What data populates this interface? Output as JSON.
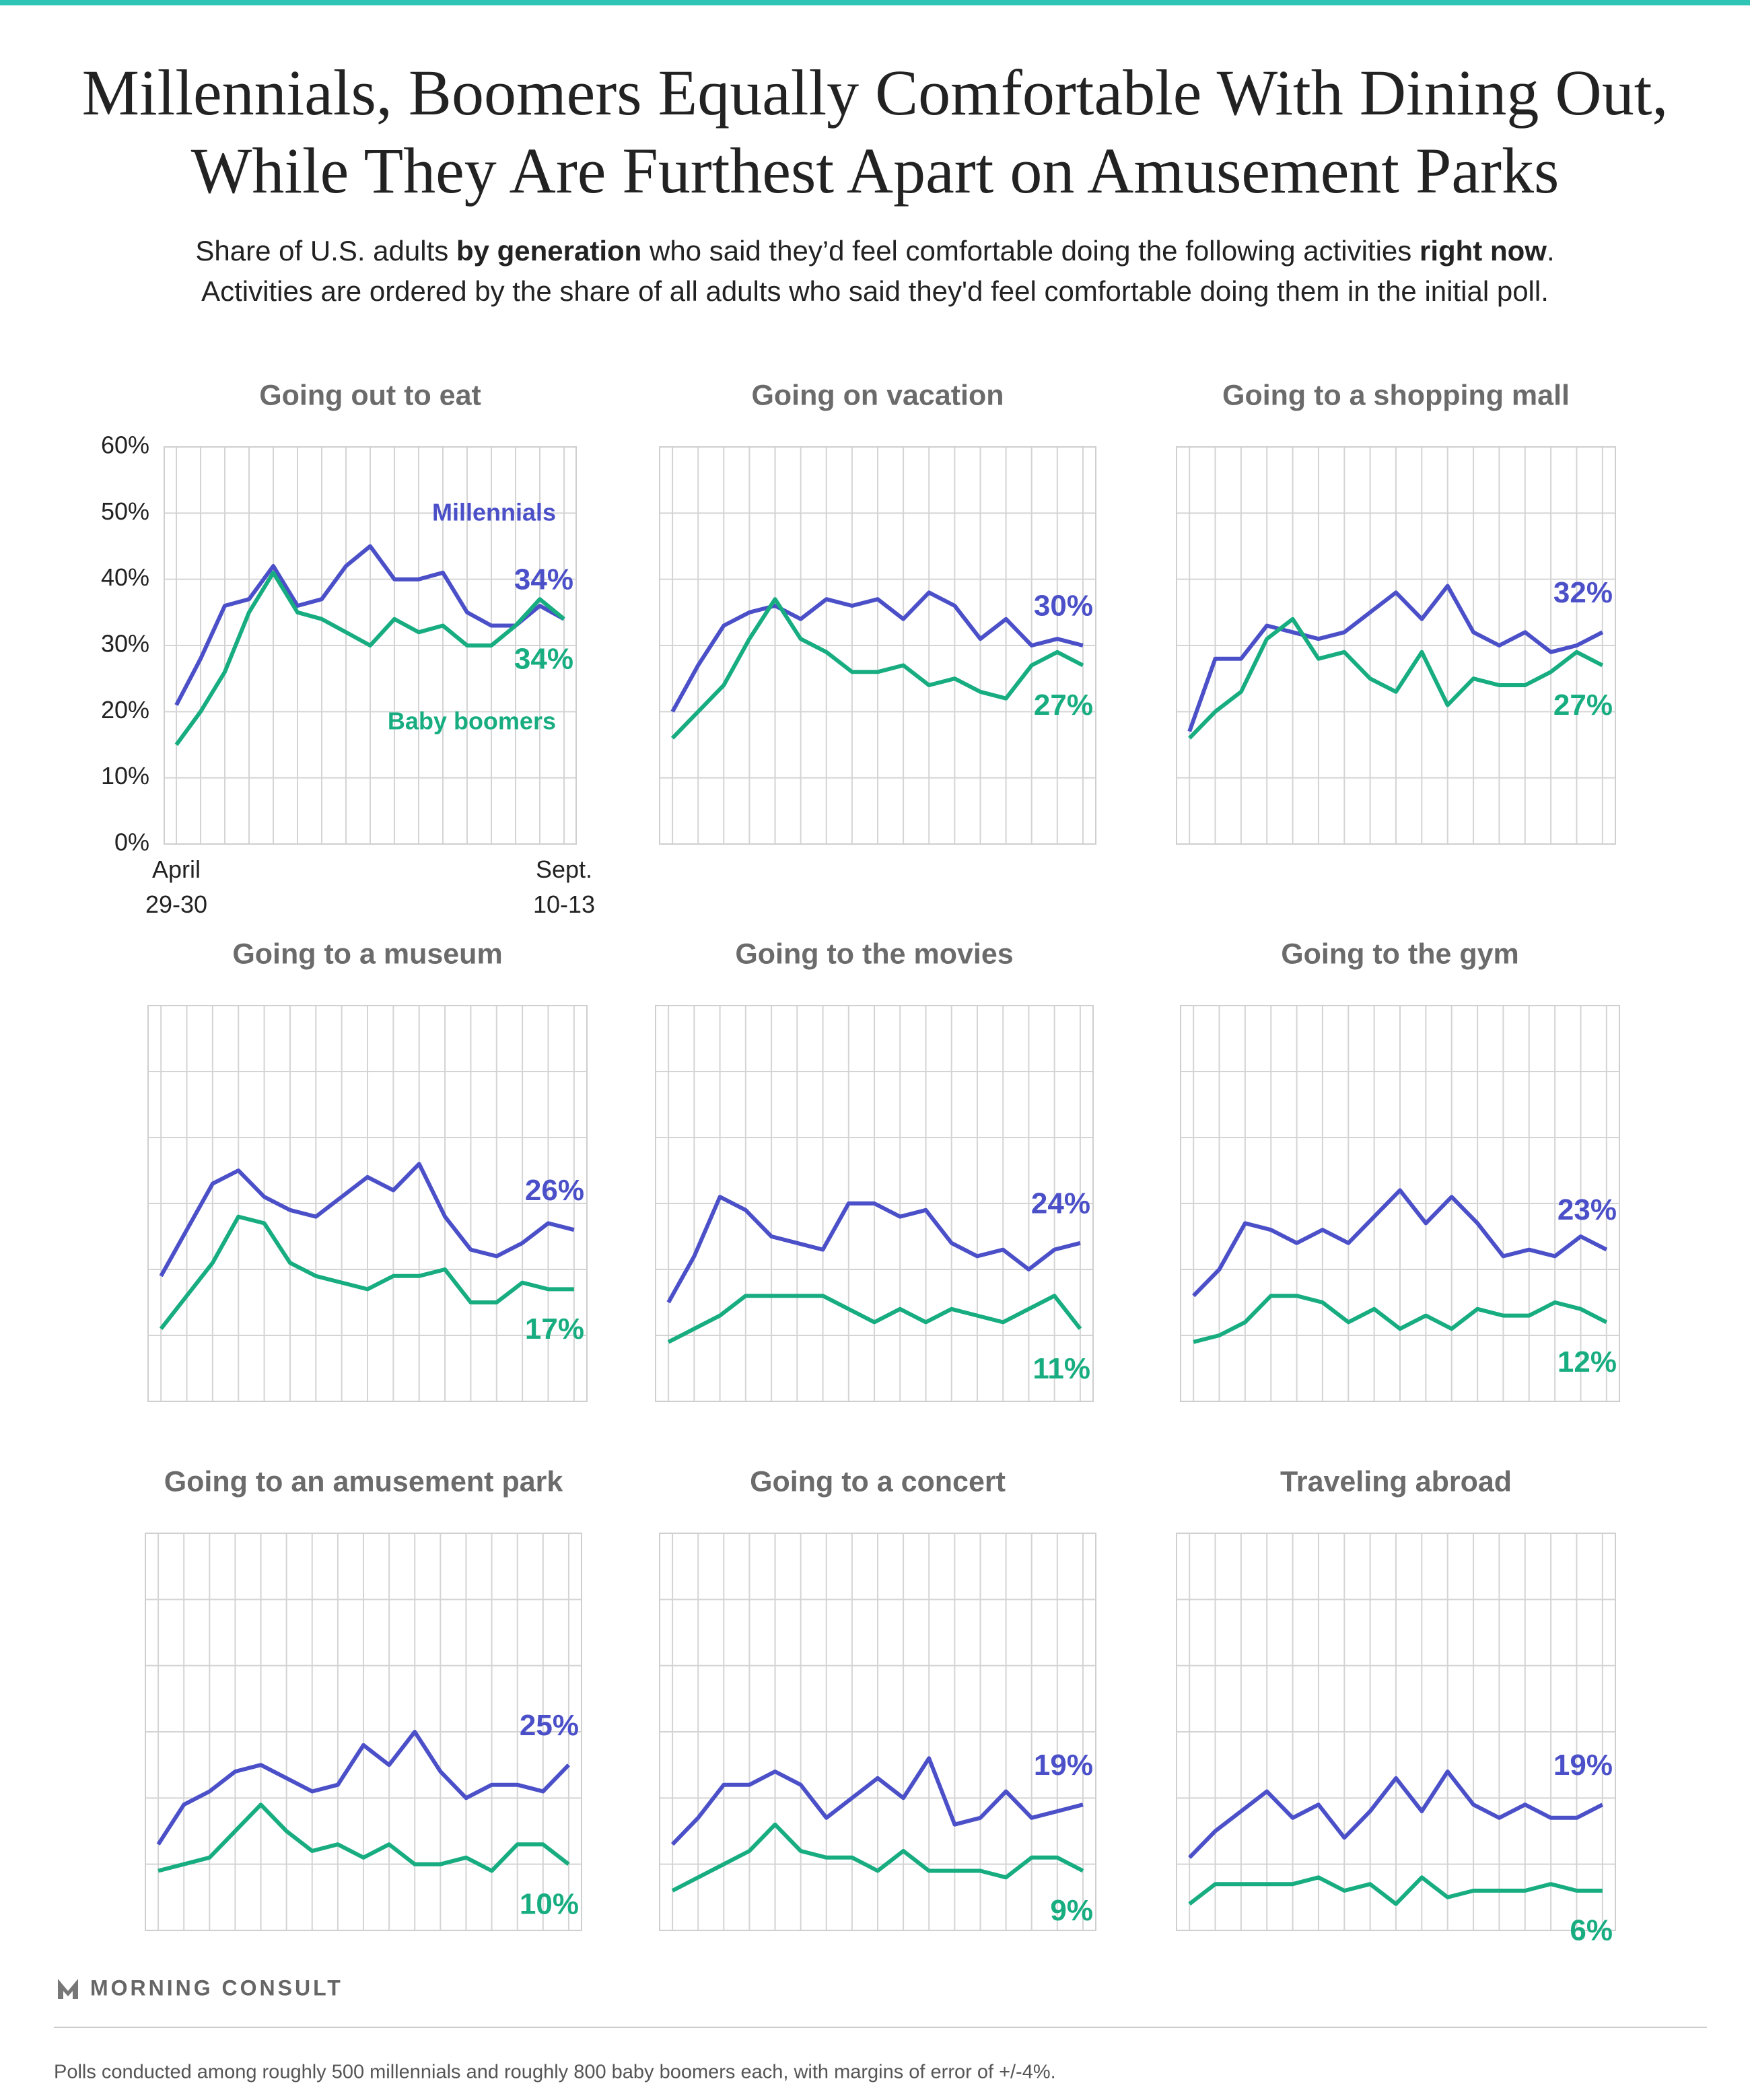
{
  "title": [
    "Millennials, Boomers Equally Comfortable With Dining Out,",
    "While They Are Furthest Apart on Amusement Parks"
  ],
  "subtitle": [
    [
      {
        "text": "Share of U.S. adults ",
        "bold": false
      },
      {
        "text": "by generation",
        "bold": true
      },
      {
        "text": " who said they’d feel comfortable doing the following activities ",
        "bold": false
      },
      {
        "text": "right now",
        "bold": true
      },
      {
        "text": ".",
        "bold": false
      }
    ],
    [
      {
        "text": "Activities are ordered by the share of all adults who said they'd feel comfortable doing them in the initial poll.",
        "bold": false
      }
    ]
  ],
  "logo": "MORNING CONSULT",
  "source": "Polls conducted among roughly 500 millennials and roughly 800 baby boomers each, with margins of error of +/-4%.",
  "chart_data": [
    {
      "type": "line",
      "title": "Going out to eat",
      "categories": [
        "April 29-30",
        null,
        null,
        null,
        null,
        null,
        null,
        null,
        null,
        null,
        null,
        null,
        null,
        null,
        null,
        null,
        "Sept. 10-13"
      ],
      "ylim": [
        0,
        60
      ],
      "yticks": [
        {
          "value": 0,
          "label": "0%"
        },
        {
          "value": 10,
          "label": "10%"
        },
        {
          "value": 20,
          "label": "20%"
        },
        {
          "value": 30,
          "label": "30%"
        },
        {
          "value": 40,
          "label": "40%"
        },
        {
          "value": 50,
          "label": "50%"
        },
        {
          "value": 60,
          "label": "60%"
        }
      ],
      "series": [
        {
          "name": "Millennials",
          "color": "#4b50c8",
          "values": [
            21,
            28,
            36,
            37,
            42,
            36,
            37,
            42,
            45,
            40,
            40,
            41,
            35,
            33,
            33,
            36,
            34
          ],
          "value_labels": [
            null,
            null,
            null,
            null,
            null,
            null,
            null,
            null,
            null,
            null,
            null,
            null,
            null,
            null,
            null,
            null,
            "34%"
          ]
        },
        {
          "name": "Baby boomers",
          "color": "#17ad80",
          "values": [
            15,
            20,
            26,
            35,
            41,
            35,
            34,
            32,
            30,
            34,
            32,
            33,
            30,
            30,
            33,
            37,
            34
          ],
          "value_labels": [
            null,
            null,
            null,
            null,
            null,
            null,
            null,
            null,
            null,
            null,
            null,
            null,
            null,
            null,
            null,
            null,
            "34%"
          ]
        }
      ]
    },
    {
      "type": "line",
      "title": "Going on vacation",
      "ylim": [
        0,
        60
      ],
      "yticks": [
        0,
        10,
        20,
        30,
        40,
        50,
        60
      ],
      "series": [
        {
          "color": "#4b50c8",
          "values": [
            20,
            27,
            33,
            35,
            36,
            34,
            37,
            36,
            37,
            34,
            38,
            36,
            31,
            34,
            30,
            31,
            30
          ],
          "value_labels": [
            null,
            null,
            null,
            null,
            null,
            null,
            null,
            null,
            null,
            null,
            null,
            null,
            null,
            null,
            null,
            null,
            "30%"
          ]
        },
        {
          "color": "#17ad80",
          "values": [
            16,
            20,
            24,
            31,
            37,
            31,
            29,
            26,
            26,
            27,
            24,
            25,
            23,
            22,
            27,
            29,
            27
          ],
          "value_labels": [
            null,
            null,
            null,
            null,
            null,
            null,
            null,
            null,
            null,
            null,
            null,
            null,
            null,
            null,
            null,
            null,
            "27%"
          ]
        }
      ]
    },
    {
      "type": "line",
      "title": "Going to a shopping mall",
      "ylim": [
        0,
        60
      ],
      "yticks": [
        0,
        10,
        20,
        30,
        40,
        50,
        60
      ],
      "series": [
        {
          "color": "#4b50c8",
          "values": [
            17,
            28,
            28,
            33,
            32,
            31,
            32,
            35,
            38,
            34,
            39,
            32,
            30,
            32,
            29,
            30,
            32
          ],
          "value_labels": [
            null,
            null,
            null,
            null,
            null,
            null,
            null,
            null,
            null,
            null,
            null,
            null,
            null,
            null,
            null,
            null,
            "32%"
          ]
        },
        {
          "color": "#17ad80",
          "values": [
            16,
            20,
            23,
            31,
            34,
            28,
            29,
            25,
            23,
            29,
            21,
            25,
            24,
            24,
            26,
            29,
            27
          ],
          "value_labels": [
            null,
            null,
            null,
            null,
            null,
            null,
            null,
            null,
            null,
            null,
            null,
            null,
            null,
            null,
            null,
            null,
            "27%"
          ]
        }
      ]
    },
    {
      "type": "line",
      "title": "Going to a museum",
      "ylim": [
        0,
        60
      ],
      "yticks": [
        0,
        10,
        20,
        30,
        40,
        50,
        60
      ],
      "series": [
        {
          "color": "#4b50c8",
          "values": [
            19,
            26,
            33,
            35,
            31,
            29,
            28,
            31,
            34,
            32,
            36,
            28,
            23,
            22,
            24,
            27,
            26
          ],
          "value_labels": [
            null,
            null,
            null,
            null,
            null,
            null,
            null,
            null,
            null,
            null,
            null,
            null,
            null,
            null,
            null,
            null,
            "26%"
          ]
        },
        {
          "color": "#17ad80",
          "values": [
            11,
            16,
            21,
            28,
            27,
            21,
            19,
            18,
            17,
            19,
            19,
            20,
            15,
            15,
            18,
            17,
            17
          ],
          "value_labels": [
            null,
            null,
            null,
            null,
            null,
            null,
            null,
            null,
            null,
            null,
            null,
            null,
            null,
            null,
            null,
            null,
            "17%"
          ]
        }
      ]
    },
    {
      "type": "line",
      "title": "Going to the movies",
      "ylim": [
        0,
        60
      ],
      "yticks": [
        0,
        10,
        20,
        30,
        40,
        50,
        60
      ],
      "series": [
        {
          "color": "#4b50c8",
          "values": [
            15,
            22,
            31,
            29,
            25,
            24,
            23,
            30,
            30,
            28,
            29,
            24,
            22,
            23,
            20,
            23,
            24
          ],
          "value_labels": [
            null,
            null,
            null,
            null,
            null,
            null,
            null,
            null,
            null,
            null,
            null,
            null,
            null,
            null,
            null,
            null,
            "24%"
          ]
        },
        {
          "color": "#17ad80",
          "values": [
            9,
            11,
            13,
            16,
            16,
            16,
            16,
            14,
            12,
            14,
            12,
            14,
            13,
            12,
            14,
            16,
            11
          ],
          "value_labels": [
            null,
            null,
            null,
            null,
            null,
            null,
            null,
            null,
            null,
            null,
            null,
            null,
            null,
            null,
            null,
            null,
            "11%"
          ]
        }
      ]
    },
    {
      "type": "line",
      "title": "Going to the gym",
      "ylim": [
        0,
        60
      ],
      "yticks": [
        0,
        10,
        20,
        30,
        40,
        50,
        60
      ],
      "series": [
        {
          "color": "#4b50c8",
          "values": [
            16,
            20,
            27,
            26,
            24,
            26,
            24,
            28,
            32,
            27,
            31,
            27,
            22,
            23,
            22,
            25,
            23
          ],
          "value_labels": [
            null,
            null,
            null,
            null,
            null,
            null,
            null,
            null,
            null,
            null,
            null,
            null,
            null,
            null,
            null,
            null,
            "23%"
          ]
        },
        {
          "color": "#17ad80",
          "values": [
            9,
            10,
            12,
            16,
            16,
            15,
            12,
            14,
            11,
            13,
            11,
            14,
            13,
            13,
            15,
            14,
            12
          ],
          "value_labels": [
            null,
            null,
            null,
            null,
            null,
            null,
            null,
            null,
            null,
            null,
            null,
            null,
            null,
            null,
            null,
            null,
            "12%"
          ]
        }
      ]
    },
    {
      "type": "line",
      "title": "Going to an amusement park",
      "ylim": [
        0,
        60
      ],
      "yticks": [
        0,
        10,
        20,
        30,
        40,
        50,
        60
      ],
      "series": [
        {
          "color": "#4b50c8",
          "values": [
            13,
            19,
            21,
            24,
            25,
            23,
            21,
            22,
            28,
            25,
            30,
            24,
            20,
            22,
            22,
            21,
            25
          ],
          "value_labels": [
            null,
            null,
            null,
            null,
            null,
            null,
            null,
            null,
            null,
            null,
            null,
            null,
            null,
            null,
            null,
            null,
            "25%"
          ]
        },
        {
          "color": "#17ad80",
          "values": [
            9,
            10,
            11,
            15,
            19,
            15,
            12,
            13,
            11,
            13,
            10,
            10,
            11,
            9,
            13,
            13,
            10
          ],
          "value_labels": [
            null,
            null,
            null,
            null,
            null,
            null,
            null,
            null,
            null,
            null,
            null,
            null,
            null,
            null,
            null,
            null,
            "10%"
          ]
        }
      ]
    },
    {
      "type": "line",
      "title": "Going to a concert",
      "ylim": [
        0,
        60
      ],
      "yticks": [
        0,
        10,
        20,
        30,
        40,
        50,
        60
      ],
      "series": [
        {
          "color": "#4b50c8",
          "values": [
            13,
            17,
            22,
            22,
            24,
            22,
            17,
            20,
            23,
            20,
            26,
            16,
            17,
            21,
            17,
            18,
            19
          ],
          "value_labels": [
            null,
            null,
            null,
            null,
            null,
            null,
            null,
            null,
            null,
            null,
            null,
            null,
            null,
            null,
            null,
            null,
            "19%"
          ]
        },
        {
          "color": "#17ad80",
          "values": [
            6,
            8,
            10,
            12,
            16,
            12,
            11,
            11,
            9,
            12,
            9,
            9,
            9,
            8,
            11,
            11,
            9
          ],
          "value_labels": [
            null,
            null,
            null,
            null,
            null,
            null,
            null,
            null,
            null,
            null,
            null,
            null,
            null,
            null,
            null,
            null,
            "9%"
          ]
        }
      ]
    },
    {
      "type": "line",
      "title": "Traveling abroad",
      "ylim": [
        0,
        60
      ],
      "yticks": [
        0,
        10,
        20,
        30,
        40,
        50,
        60
      ],
      "series": [
        {
          "color": "#4b50c8",
          "values": [
            11,
            15,
            18,
            21,
            17,
            19,
            14,
            18,
            23,
            18,
            24,
            19,
            17,
            19,
            17,
            17,
            19
          ],
          "value_labels": [
            null,
            null,
            null,
            null,
            null,
            null,
            null,
            null,
            null,
            null,
            null,
            null,
            null,
            null,
            null,
            null,
            "19%"
          ]
        },
        {
          "color": "#17ad80",
          "values": [
            4,
            7,
            7,
            7,
            7,
            8,
            6,
            7,
            4,
            8,
            5,
            6,
            6,
            6,
            7,
            6,
            6
          ],
          "value_labels": [
            null,
            null,
            null,
            null,
            null,
            null,
            null,
            null,
            null,
            null,
            null,
            null,
            null,
            null,
            null,
            null,
            "6%"
          ]
        }
      ]
    }
  ]
}
